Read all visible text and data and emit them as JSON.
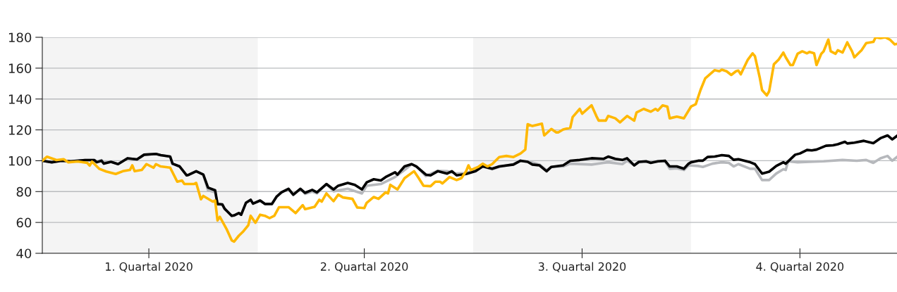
{
  "chart_data": {
    "type": "line",
    "xlim": [
      "2020-01-01",
      "2020-12-27"
    ],
    "xticks": [
      {
        "value": "2020-02-15",
        "label": "1. Quartal 2020"
      },
      {
        "value": "2020-05-16",
        "label": "2. Quartal 2020"
      },
      {
        "value": "2020-08-16",
        "label": "3. Quartal 2020"
      },
      {
        "value": "2020-11-16",
        "label": "4. Quartal 2020"
      }
    ],
    "ylim": [
      40,
      180
    ],
    "yticks": [
      40,
      60,
      80,
      100,
      120,
      140,
      160,
      180
    ],
    "grid": "y",
    "marker": "none",
    "line_style": "solid",
    "bands": [
      {
        "axis": "x",
        "from": "2020-01-01",
        "to": "2020-04-01",
        "color": "#f4f4f4"
      },
      {
        "axis": "x",
        "from": "2020-07-01",
        "to": "2020-10-01",
        "color": "#f4f4f4"
      }
    ],
    "series": [
      {
        "color": "#b6b8bc",
        "x": [
          "2020-01-01",
          "2020-01-05",
          "2020-01-09",
          "2020-01-13",
          "2020-01-19",
          "2020-01-23",
          "2020-01-24",
          "2020-01-26",
          "2020-01-27",
          "2020-01-30",
          "2020-02-02",
          "2020-02-06",
          "2020-02-10",
          "2020-02-13",
          "2020-02-18",
          "2020-02-20",
          "2020-02-24",
          "2020-02-25",
          "2020-02-28",
          "2020-03-02",
          "2020-03-03",
          "2020-03-06",
          "2020-03-09",
          "2020-03-11",
          "2020-03-14",
          "2020-03-15",
          "2020-03-17",
          "2020-03-18",
          "2020-03-19",
          "2020-03-21",
          "2020-03-22",
          "2020-03-24",
          "2020-03-25",
          "2020-03-27",
          "2020-03-29",
          "2020-03-30",
          "2020-04-02",
          "2020-04-04",
          "2020-04-07",
          "2020-04-09",
          "2020-04-11",
          "2020-04-14",
          "2020-04-16",
          "2020-04-19",
          "2020-04-21",
          "2020-04-24",
          "2020-04-26",
          "2020-04-30",
          "2020-05-03",
          "2020-05-09",
          "2020-05-15",
          "2020-05-17",
          "2020-05-23",
          "2020-05-29",
          "2020-06-02",
          "2020-06-05",
          "2020-06-07",
          "2020-06-11",
          "2020-06-16",
          "2020-06-20",
          "2020-06-24",
          "2020-06-28",
          "2020-07-02",
          "2020-07-05",
          "2020-07-09",
          "2020-07-12",
          "2020-07-18",
          "2020-07-21",
          "2020-07-24",
          "2020-07-29",
          "2020-08-01",
          "2020-08-03",
          "2020-08-08",
          "2020-08-11",
          "2020-08-20",
          "2020-08-25",
          "2020-08-27",
          "2020-09-02",
          "2020-09-04",
          "2020-09-07",
          "2020-09-09",
          "2020-09-12",
          "2020-09-20",
          "2020-09-22",
          "2020-09-25",
          "2020-09-28",
          "2020-09-30",
          "2020-10-04",
          "2020-10-06",
          "2020-10-10",
          "2020-10-14",
          "2020-10-17",
          "2020-10-19",
          "2020-10-21",
          "2020-10-26",
          "2020-10-28",
          "2020-10-31",
          "2020-11-03",
          "2020-11-06",
          "2020-11-09",
          "2020-11-10",
          "2020-11-11",
          "2020-11-15",
          "2020-11-20",
          "2020-11-26",
          "2020-12-04",
          "2020-12-10",
          "2020-12-14",
          "2020-12-17",
          "2020-12-20",
          "2020-12-23",
          "2020-12-25",
          "2020-12-27"
        ],
        "values": [
          100,
          99,
          100,
          99.6,
          100.4,
          100.4,
          99.5,
          100.4,
          99,
          99.3,
          97.8,
          101.6,
          100.9,
          103.9,
          104.4,
          103.6,
          102.7,
          98.1,
          96.3,
          90.5,
          91,
          93.2,
          91,
          80.8,
          79.5,
          71.5,
          71.7,
          68.9,
          67.4,
          64.3,
          64.3,
          66.1,
          65,
          72.7,
          74.7,
          72.2,
          74.2,
          72,
          72,
          76.8,
          79.5,
          81.8,
          77.7,
          81.8,
          78.5,
          80,
          78.8,
          84.9,
          80.2,
          81.8,
          78.8,
          83.8,
          84.9,
          89.4,
          94,
          97.8,
          96.3,
          90.1,
          93.5,
          93.2,
          91.7,
          92,
          94,
          96.3,
          94.5,
          96,
          97.8,
          100,
          99.6,
          97.5,
          93.8,
          96,
          96.3,
          98.1,
          97.5,
          98.6,
          99,
          97.8,
          100,
          97,
          99,
          99.3,
          99.6,
          94.8,
          95.1,
          94,
          97,
          96.6,
          96,
          98.1,
          99,
          98.6,
          96.3,
          97.8,
          94.8,
          94.8,
          87.5,
          87.5,
          91.7,
          94.5,
          94,
          99.6,
          99,
          99.3,
          99.6,
          100.5,
          100,
          100.5,
          98.6,
          101.6,
          103.1,
          100,
          102.4
        ]
      },
      {
        "color": "#000000",
        "x": [
          "2020-01-01",
          "2020-01-05",
          "2020-01-09",
          "2020-01-13",
          "2020-01-19",
          "2020-01-23",
          "2020-01-24",
          "2020-01-26",
          "2020-01-27",
          "2020-01-30",
          "2020-02-02",
          "2020-02-06",
          "2020-02-10",
          "2020-02-13",
          "2020-02-18",
          "2020-02-20",
          "2020-02-24",
          "2020-02-25",
          "2020-02-28",
          "2020-03-02",
          "2020-03-03",
          "2020-03-06",
          "2020-03-09",
          "2020-03-11",
          "2020-03-14",
          "2020-03-15",
          "2020-03-17",
          "2020-03-18",
          "2020-03-19",
          "2020-03-21",
          "2020-03-22",
          "2020-03-24",
          "2020-03-25",
          "2020-03-27",
          "2020-03-29",
          "2020-03-30",
          "2020-04-02",
          "2020-04-04",
          "2020-04-07",
          "2020-04-09",
          "2020-04-11",
          "2020-04-14",
          "2020-04-16",
          "2020-04-19",
          "2020-04-21",
          "2020-04-24",
          "2020-04-26",
          "2020-04-30",
          "2020-05-03",
          "2020-05-05",
          "2020-05-09",
          "2020-05-12",
          "2020-05-15",
          "2020-05-17",
          "2020-05-20",
          "2020-05-23",
          "2020-05-25",
          "2020-05-29",
          "2020-05-30",
          "2020-06-02",
          "2020-06-05",
          "2020-06-07",
          "2020-06-11",
          "2020-06-13",
          "2020-06-16",
          "2020-06-20",
          "2020-06-22",
          "2020-06-24",
          "2020-06-28",
          "2020-07-02",
          "2020-07-05",
          "2020-07-09",
          "2020-07-12",
          "2020-07-18",
          "2020-07-21",
          "2020-07-24",
          "2020-07-26",
          "2020-07-29",
          "2020-08-01",
          "2020-08-03",
          "2020-08-08",
          "2020-08-11",
          "2020-08-15",
          "2020-08-20",
          "2020-08-25",
          "2020-08-27",
          "2020-08-30",
          "2020-09-02",
          "2020-09-04",
          "2020-09-07",
          "2020-09-09",
          "2020-09-12",
          "2020-09-14",
          "2020-09-17",
          "2020-09-20",
          "2020-09-22",
          "2020-09-25",
          "2020-09-28",
          "2020-09-30",
          "2020-10-01",
          "2020-10-04",
          "2020-10-06",
          "2020-10-08",
          "2020-10-11",
          "2020-10-14",
          "2020-10-17",
          "2020-10-19",
          "2020-10-21",
          "2020-10-26",
          "2020-10-28",
          "2020-10-31",
          "2020-11-03",
          "2020-11-06",
          "2020-11-09",
          "2020-11-10",
          "2020-11-14",
          "2020-11-16",
          "2020-11-19",
          "2020-11-21",
          "2020-11-23",
          "2020-11-27",
          "2020-11-30",
          "2020-12-02",
          "2020-12-05",
          "2020-12-06",
          "2020-12-09",
          "2020-12-13",
          "2020-12-17",
          "2020-12-20",
          "2020-12-23",
          "2020-12-25",
          "2020-12-27"
        ],
        "values": [
          100,
          99,
          100,
          99.6,
          100.4,
          100.4,
          99,
          100,
          98.1,
          99.3,
          97.8,
          101.6,
          100.9,
          103.9,
          104.4,
          103.6,
          102.7,
          98.1,
          96.3,
          90.5,
          91,
          93.2,
          91,
          82.6,
          80.8,
          72,
          71.7,
          68.9,
          67.4,
          64.3,
          64.6,
          66.1,
          65,
          72.7,
          74.7,
          72.2,
          74.2,
          72,
          72,
          76.8,
          79.5,
          81.8,
          78,
          81.8,
          79.2,
          81.1,
          79.5,
          84.9,
          81.4,
          83.8,
          85.6,
          84.4,
          81.4,
          86,
          88,
          87.2,
          89.4,
          92.5,
          91,
          96.3,
          97.8,
          96.3,
          91,
          90.5,
          93.2,
          91.7,
          93.2,
          90.5,
          91.4,
          93.2,
          96.3,
          94.8,
          96.3,
          97.5,
          100,
          99.3,
          97.5,
          97,
          93.2,
          96,
          97,
          100,
          100.5,
          101.6,
          101.2,
          102.7,
          101.2,
          100.5,
          101.6,
          97,
          99.3,
          99.6,
          98.6,
          99.6,
          100,
          96.3,
          96.3,
          94.8,
          98.1,
          99,
          100,
          100,
          102.4,
          102.7,
          103.6,
          103.1,
          100.6,
          101,
          99,
          97.8,
          91.7,
          92.9,
          96.6,
          99,
          98.1,
          103.9,
          104.7,
          107,
          106.7,
          107.2,
          109.7,
          110,
          110.7,
          112.3,
          111.2,
          111.7,
          112.9,
          111.4,
          114.6,
          116.4,
          113.8,
          116.1
        ]
      },
      {
        "color": "#ffb800",
        "x": [
          "2020-01-01",
          "2020-01-03",
          "2020-01-07",
          "2020-01-10",
          "2020-01-12",
          "2020-01-16",
          "2020-01-20",
          "2020-01-21",
          "2020-01-22",
          "2020-01-25",
          "2020-01-28",
          "2020-02-01",
          "2020-02-04",
          "2020-02-07",
          "2020-02-08",
          "2020-02-09",
          "2020-02-12",
          "2020-02-14",
          "2020-02-17",
          "2020-02-18",
          "2020-02-20",
          "2020-02-24",
          "2020-02-27",
          "2020-02-29",
          "2020-03-01",
          "2020-03-05",
          "2020-03-06",
          "2020-03-08",
          "2020-03-09",
          "2020-03-13",
          "2020-03-14",
          "2020-03-15",
          "2020-03-16",
          "2020-03-19",
          "2020-03-21",
          "2020-03-22",
          "2020-03-24",
          "2020-03-26",
          "2020-03-28",
          "2020-03-29",
          "2020-03-31",
          "2020-04-02",
          "2020-04-04",
          "2020-04-06",
          "2020-04-08",
          "2020-04-10",
          "2020-04-14",
          "2020-04-17",
          "2020-04-20",
          "2020-04-21",
          "2020-04-25",
          "2020-04-27",
          "2020-04-28",
          "2020-04-30",
          "2020-05-03",
          "2020-05-05",
          "2020-05-07",
          "2020-05-11",
          "2020-05-13",
          "2020-05-16",
          "2020-05-17",
          "2020-05-20",
          "2020-05-22",
          "2020-05-25",
          "2020-05-26",
          "2020-05-27",
          "2020-05-30",
          "2020-06-02",
          "2020-06-06",
          "2020-06-08",
          "2020-06-10",
          "2020-06-13",
          "2020-06-15",
          "2020-06-17",
          "2020-06-18",
          "2020-06-21",
          "2020-06-24",
          "2020-06-26",
          "2020-06-28",
          "2020-06-29",
          "2020-06-30",
          "2020-07-03",
          "2020-07-05",
          "2020-07-07",
          "2020-07-09",
          "2020-07-12",
          "2020-07-15",
          "2020-07-18",
          "2020-07-21",
          "2020-07-23",
          "2020-07-24",
          "2020-07-26",
          "2020-07-30",
          "2020-07-31",
          "2020-08-03",
          "2020-08-05",
          "2020-08-06",
          "2020-08-08",
          "2020-08-11",
          "2020-08-12",
          "2020-08-15",
          "2020-08-16",
          "2020-08-20",
          "2020-08-22",
          "2020-08-23",
          "2020-08-26",
          "2020-08-27",
          "2020-08-30",
          "2020-09-01",
          "2020-09-04",
          "2020-09-07",
          "2020-09-08",
          "2020-09-11",
          "2020-09-14",
          "2020-09-16",
          "2020-09-17",
          "2020-09-19",
          "2020-09-21",
          "2020-09-22",
          "2020-09-25",
          "2020-09-28",
          "2020-10-01",
          "2020-10-03",
          "2020-10-05",
          "2020-10-07",
          "2020-10-11",
          "2020-10-13",
          "2020-10-14",
          "2020-10-16",
          "2020-10-18",
          "2020-10-20",
          "2020-10-21",
          "2020-10-22",
          "2020-10-25",
          "2020-10-27",
          "2020-10-28",
          "2020-10-30",
          "2020-10-31",
          "2020-11-02",
          "2020-11-03",
          "2020-11-05",
          "2020-11-07",
          "2020-11-09",
          "2020-11-10",
          "2020-11-12",
          "2020-11-13",
          "2020-11-15",
          "2020-11-17",
          "2020-11-19",
          "2020-11-20",
          "2020-11-22",
          "2020-11-23",
          "2020-11-25",
          "2020-11-26",
          "2020-11-28",
          "2020-11-29",
          "2020-12-01",
          "2020-12-02",
          "2020-12-04",
          "2020-12-06",
          "2020-12-08",
          "2020-12-09",
          "2020-12-11",
          "2020-12-12",
          "2020-12-14",
          "2020-12-17",
          "2020-12-18",
          "2020-12-20",
          "2020-12-22",
          "2020-12-24",
          "2020-12-26",
          "2020-12-27"
        ],
        "values": [
          100,
          102.6,
          100.4,
          101,
          99,
          99.5,
          98.6,
          96.8,
          99.4,
          94.8,
          93,
          91.4,
          93.2,
          94,
          97,
          93.2,
          94,
          97.8,
          95.5,
          97.8,
          96.3,
          95.5,
          86.4,
          87.2,
          84.9,
          84.9,
          85.6,
          75,
          77.2,
          73.5,
          74.2,
          61.3,
          63.6,
          55.2,
          48.4,
          47.6,
          51.4,
          54.4,
          58.2,
          64.3,
          59.8,
          65,
          64.3,
          62.8,
          64.3,
          69.9,
          69.9,
          66.1,
          71.2,
          68.6,
          70.1,
          74.7,
          73.5,
          78.8,
          73.8,
          78,
          76.2,
          75.3,
          69.7,
          69.3,
          72.7,
          76.5,
          75.3,
          79.5,
          78.8,
          84.4,
          81.4,
          88.7,
          93.2,
          88.7,
          83.8,
          83.5,
          86.4,
          86.4,
          85.3,
          89.4,
          87.5,
          88.7,
          93.2,
          97,
          94,
          95.9,
          98.1,
          96.3,
          97.8,
          102.4,
          103.1,
          102.4,
          104.7,
          107.2,
          123.7,
          122.5,
          124,
          116.4,
          120.6,
          118.4,
          118.4,
          120.3,
          121.4,
          128.3,
          133.6,
          130.5,
          135.9,
          129,
          126,
          126,
          129,
          127.5,
          124.9,
          129,
          126,
          131.3,
          133.6,
          131.8,
          133.6,
          132.5,
          135.9,
          135.1,
          127.5,
          128.6,
          127.5,
          135.1,
          136.6,
          145.8,
          153.4,
          158.7,
          158,
          159,
          158,
          155.6,
          158,
          158.4,
          156,
          165.5,
          169.6,
          167.7,
          154.1,
          145.8,
          142.3,
          145,
          162.5,
          165.5,
          170.1,
          167,
          162,
          162,
          169.3,
          170.9,
          169.6,
          170.5,
          169.6,
          162,
          169.3,
          170.9,
          178.5,
          170.9,
          169.3,
          171.6,
          170.1,
          176.7,
          170.9,
          167,
          170.1,
          171.6,
          176.2,
          177,
          180,
          179.5,
          180,
          178.5,
          175.4,
          175.7
        ]
      }
    ]
  }
}
